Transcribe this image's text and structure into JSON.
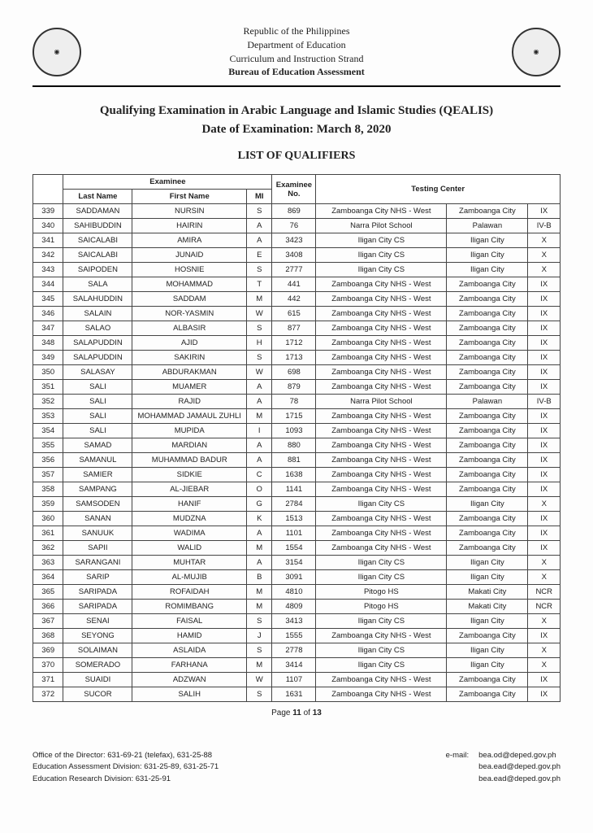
{
  "header": {
    "lines": [
      "Republic of the Philippines",
      "Department of Education",
      "Curriculum and Instruction Strand"
    ],
    "bureau": "Bureau of Education Assessment"
  },
  "title_line1": "Qualifying Examination in Arabic Language and Islamic Studies (QEALIS)",
  "title_line2": "Date of Examination: March 8, 2020",
  "list_heading": "LIST OF QUALIFIERS",
  "table": {
    "headers": {
      "examinee": "Examinee",
      "last": "Last Name",
      "first": "First Name",
      "mi": "MI",
      "examno": "Examinee No.",
      "testing": "Testing Center"
    },
    "rows": [
      {
        "idx": "339",
        "last": "SADDAMAN",
        "first": "NURSIN",
        "mi": "S",
        "no": "869",
        "tc1": "Zamboanga City NHS - West",
        "tc2": "Zamboanga City",
        "tc3": "IX"
      },
      {
        "idx": "340",
        "last": "SAHIBUDDIN",
        "first": "HAIRIN",
        "mi": "A",
        "no": "76",
        "tc1": "Narra Pilot School",
        "tc2": "Palawan",
        "tc3": "IV-B"
      },
      {
        "idx": "341",
        "last": "SAICALABI",
        "first": "AMIRA",
        "mi": "A",
        "no": "3423",
        "tc1": "Iligan City CS",
        "tc2": "Iligan City",
        "tc3": "X"
      },
      {
        "idx": "342",
        "last": "SAICALABI",
        "first": "JUNAID",
        "mi": "E",
        "no": "3408",
        "tc1": "Iligan City CS",
        "tc2": "Iligan City",
        "tc3": "X"
      },
      {
        "idx": "343",
        "last": "SAIPODEN",
        "first": "HOSNIE",
        "mi": "S",
        "no": "2777",
        "tc1": "Iligan City CS",
        "tc2": "Iligan City",
        "tc3": "X"
      },
      {
        "idx": "344",
        "last": "SALA",
        "first": "MOHAMMAD",
        "mi": "T",
        "no": "441",
        "tc1": "Zamboanga City NHS - West",
        "tc2": "Zamboanga City",
        "tc3": "IX"
      },
      {
        "idx": "345",
        "last": "SALAHUDDIN",
        "first": "SADDAM",
        "mi": "M",
        "no": "442",
        "tc1": "Zamboanga City NHS - West",
        "tc2": "Zamboanga City",
        "tc3": "IX"
      },
      {
        "idx": "346",
        "last": "SALAIN",
        "first": "NOR-YASMIN",
        "mi": "W",
        "no": "615",
        "tc1": "Zamboanga City NHS - West",
        "tc2": "Zamboanga City",
        "tc3": "IX"
      },
      {
        "idx": "347",
        "last": "SALAO",
        "first": "ALBASIR",
        "mi": "S",
        "no": "877",
        "tc1": "Zamboanga City NHS - West",
        "tc2": "Zamboanga City",
        "tc3": "IX"
      },
      {
        "idx": "348",
        "last": "SALAPUDDIN",
        "first": "AJID",
        "mi": "H",
        "no": "1712",
        "tc1": "Zamboanga City NHS - West",
        "tc2": "Zamboanga City",
        "tc3": "IX"
      },
      {
        "idx": "349",
        "last": "SALAPUDDIN",
        "first": "SAKIRIN",
        "mi": "S",
        "no": "1713",
        "tc1": "Zamboanga City NHS - West",
        "tc2": "Zamboanga City",
        "tc3": "IX"
      },
      {
        "idx": "350",
        "last": "SALASAY",
        "first": "ABDURAKMAN",
        "mi": "W",
        "no": "698",
        "tc1": "Zamboanga City NHS - West",
        "tc2": "Zamboanga City",
        "tc3": "IX"
      },
      {
        "idx": "351",
        "last": "SALI",
        "first": "MUAMER",
        "mi": "A",
        "no": "879",
        "tc1": "Zamboanga City NHS - West",
        "tc2": "Zamboanga City",
        "tc3": "IX"
      },
      {
        "idx": "352",
        "last": "SALI",
        "first": "RAJID",
        "mi": "A",
        "no": "78",
        "tc1": "Narra Pilot School",
        "tc2": "Palawan",
        "tc3": "IV-B"
      },
      {
        "idx": "353",
        "last": "SALI",
        "first": "MOHAMMAD JAMAUL ZUHLI",
        "mi": "M",
        "no": "1715",
        "tc1": "Zamboanga City NHS - West",
        "tc2": "Zamboanga City",
        "tc3": "IX"
      },
      {
        "idx": "354",
        "last": "SALI",
        "first": "MUPIDA",
        "mi": "I",
        "no": "1093",
        "tc1": "Zamboanga City NHS - West",
        "tc2": "Zamboanga City",
        "tc3": "IX"
      },
      {
        "idx": "355",
        "last": "SAMAD",
        "first": "MARDIAN",
        "mi": "A",
        "no": "880",
        "tc1": "Zamboanga City NHS - West",
        "tc2": "Zamboanga City",
        "tc3": "IX"
      },
      {
        "idx": "356",
        "last": "SAMANUL",
        "first": "MUHAMMAD BADUR",
        "mi": "A",
        "no": "881",
        "tc1": "Zamboanga City NHS - West",
        "tc2": "Zamboanga City",
        "tc3": "IX"
      },
      {
        "idx": "357",
        "last": "SAMIER",
        "first": "SIDKIE",
        "mi": "C",
        "no": "1638",
        "tc1": "Zamboanga City NHS - West",
        "tc2": "Zamboanga City",
        "tc3": "IX"
      },
      {
        "idx": "358",
        "last": "SAMPANG",
        "first": "AL-JIEBAR",
        "mi": "O",
        "no": "1141",
        "tc1": "Zamboanga City NHS - West",
        "tc2": "Zamboanga City",
        "tc3": "IX"
      },
      {
        "idx": "359",
        "last": "SAMSODEN",
        "first": "HANIF",
        "mi": "G",
        "no": "2784",
        "tc1": "Iligan City CS",
        "tc2": "Iligan City",
        "tc3": "X"
      },
      {
        "idx": "360",
        "last": "SANAN",
        "first": "MUDZNA",
        "mi": "K",
        "no": "1513",
        "tc1": "Zamboanga City NHS - West",
        "tc2": "Zamboanga City",
        "tc3": "IX"
      },
      {
        "idx": "361",
        "last": "SANUUK",
        "first": "WADIMA",
        "mi": "A",
        "no": "1101",
        "tc1": "Zamboanga City NHS - West",
        "tc2": "Zamboanga City",
        "tc3": "IX"
      },
      {
        "idx": "362",
        "last": "SAPII",
        "first": "WALID",
        "mi": "M",
        "no": "1554",
        "tc1": "Zamboanga City NHS - West",
        "tc2": "Zamboanga City",
        "tc3": "IX"
      },
      {
        "idx": "363",
        "last": "SARANGANI",
        "first": "MUHTAR",
        "mi": "A",
        "no": "3154",
        "tc1": "Iligan City CS",
        "tc2": "Iligan City",
        "tc3": "X"
      },
      {
        "idx": "364",
        "last": "SARIP",
        "first": "AL-MUJIB",
        "mi": "B",
        "no": "3091",
        "tc1": "Iligan City CS",
        "tc2": "Iligan City",
        "tc3": "X"
      },
      {
        "idx": "365",
        "last": "SARIPADA",
        "first": "ROFAIDAH",
        "mi": "M",
        "no": "4810",
        "tc1": "Pitogo HS",
        "tc2": "Makati City",
        "tc3": "NCR"
      },
      {
        "idx": "366",
        "last": "SARIPADA",
        "first": "ROMIMBANG",
        "mi": "M",
        "no": "4809",
        "tc1": "Pitogo HS",
        "tc2": "Makati City",
        "tc3": "NCR"
      },
      {
        "idx": "367",
        "last": "SENAI",
        "first": "FAISAL",
        "mi": "S",
        "no": "3413",
        "tc1": "Iligan City CS",
        "tc2": "Iligan City",
        "tc3": "X"
      },
      {
        "idx": "368",
        "last": "SEYONG",
        "first": "HAMID",
        "mi": "J",
        "no": "1555",
        "tc1": "Zamboanga City NHS - West",
        "tc2": "Zamboanga City",
        "tc3": "IX"
      },
      {
        "idx": "369",
        "last": "SOLAIMAN",
        "first": "ASLAIDA",
        "mi": "S",
        "no": "2778",
        "tc1": "Iligan City CS",
        "tc2": "Iligan City",
        "tc3": "X"
      },
      {
        "idx": "370",
        "last": "SOMERADO",
        "first": "FARHANA",
        "mi": "M",
        "no": "3414",
        "tc1": "Iligan City CS",
        "tc2": "Iligan City",
        "tc3": "X"
      },
      {
        "idx": "371",
        "last": "SUAIDI",
        "first": "ADZWAN",
        "mi": "W",
        "no": "1107",
        "tc1": "Zamboanga City NHS - West",
        "tc2": "Zamboanga City",
        "tc3": "IX"
      },
      {
        "idx": "372",
        "last": "SUCOR",
        "first": "SALIH",
        "mi": "S",
        "no": "1631",
        "tc1": "Zamboanga City NHS - West",
        "tc2": "Zamboanga City",
        "tc3": "IX"
      }
    ]
  },
  "page": {
    "current": "11",
    "total": "13",
    "label_prefix": "Page ",
    "label_mid": " of "
  },
  "footer": {
    "left": [
      "Office of the Director: 631-69-21 (telefax), 631-25-88",
      "Education Assessment Division: 631-25-89, 631-25-71",
      "Education Research Division: 631-25-91"
    ],
    "email_label": "e-mail:",
    "emails": [
      "bea.od@deped.gov.ph",
      "bea.ead@deped.gov.ph",
      "bea.ead@deped.gov.ph"
    ]
  }
}
